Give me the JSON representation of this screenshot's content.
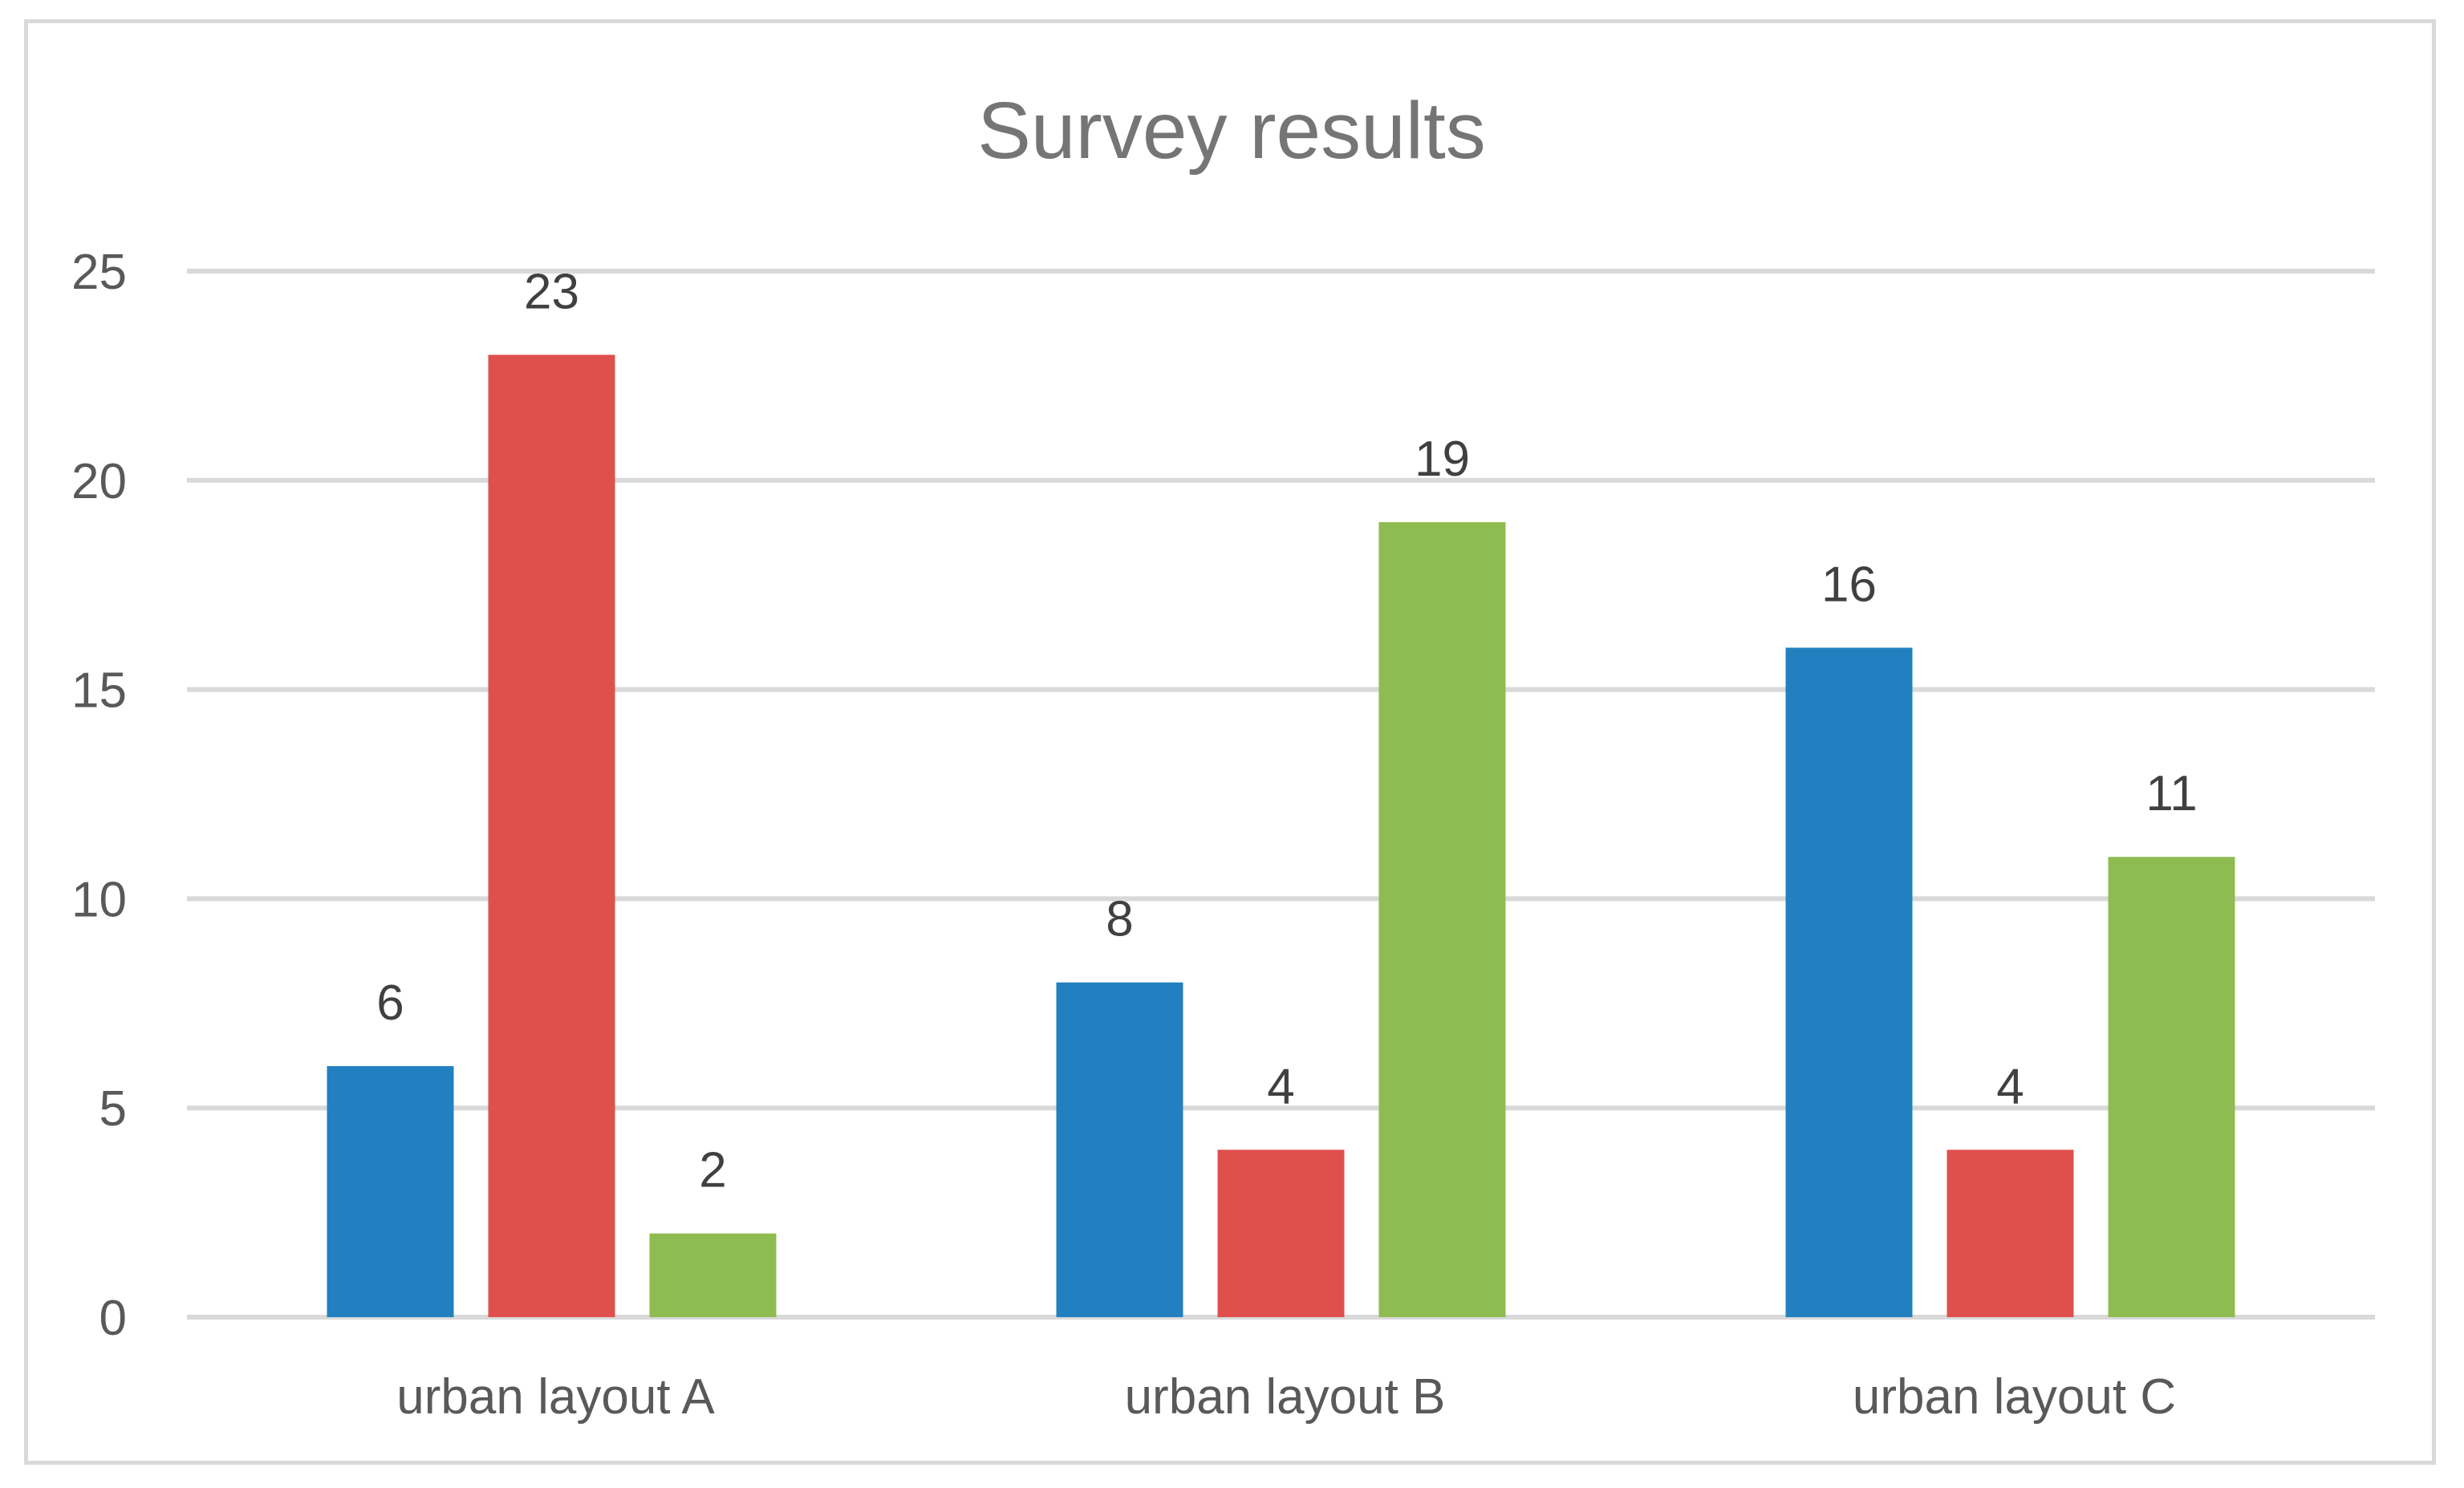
{
  "chart_data": {
    "type": "bar",
    "title": "Survey results",
    "xlabel": "",
    "ylabel": "",
    "categories": [
      "urban layout A",
      "urban layout B",
      "urban layout C"
    ],
    "series": [
      {
        "values": [
          6,
          8,
          16
        ],
        "color": "#2380c0"
      },
      {
        "values": [
          23,
          4,
          4
        ],
        "color": "#df504d"
      },
      {
        "values": [
          2,
          19,
          11
        ],
        "color": "#8fbc50"
      }
    ],
    "ylim": [
      0,
      25
    ],
    "yticks": [
      "0",
      "5",
      "10",
      "15",
      "20",
      "25"
    ],
    "grid": true,
    "legend": "none",
    "data_labels": true,
    "colors": {
      "gridline": "#d9d9d9",
      "frame": "#d9d9d9",
      "title": "#757575",
      "axis_text": "#595959",
      "data_label": "#404040"
    }
  }
}
